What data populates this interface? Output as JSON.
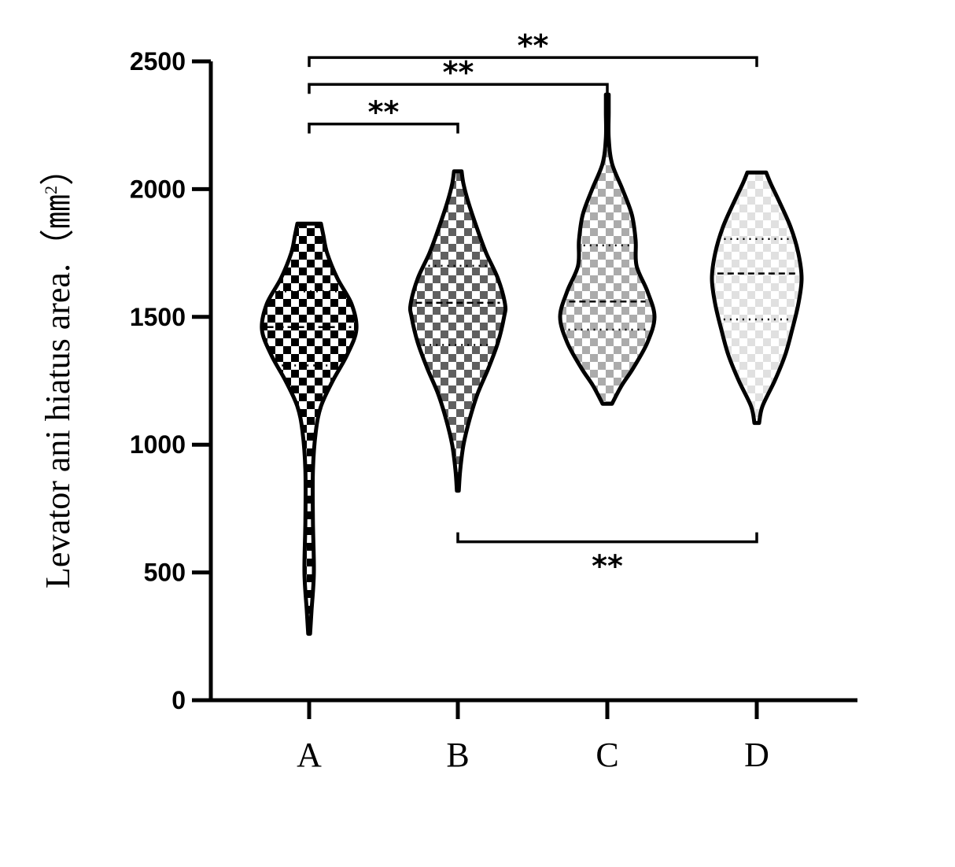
{
  "chart_data": {
    "type": "violin",
    "ylabel": "Levator ani hiatus area.（㎜",
    "ylabel_sup": "2",
    "ylabel_close": "）",
    "ylim": [
      0,
      2500
    ],
    "yticks": [
      0,
      500,
      1000,
      1500,
      2000,
      2500
    ],
    "categories": [
      "A",
      "B",
      "C",
      "D"
    ],
    "grid": false,
    "series": [
      {
        "category": "A",
        "fill": "#000000",
        "fill_opacity": 1.0,
        "min": 260,
        "max": 1865,
        "q1": 1310,
        "median": 1460,
        "q3": 1600,
        "density": [
          [
            260,
            0.02
          ],
          [
            350,
            0.05
          ],
          [
            500,
            0.1
          ],
          [
            700,
            0.08
          ],
          [
            900,
            0.08
          ],
          [
            1050,
            0.14
          ],
          [
            1150,
            0.25
          ],
          [
            1250,
            0.5
          ],
          [
            1350,
            0.8
          ],
          [
            1450,
            1.0
          ],
          [
            1550,
            0.9
          ],
          [
            1650,
            0.6
          ],
          [
            1750,
            0.38
          ],
          [
            1820,
            0.3
          ],
          [
            1865,
            0.25
          ]
        ]
      },
      {
        "category": "B",
        "fill": "#444444",
        "fill_opacity": 0.85,
        "min": 820,
        "max": 2070,
        "q1": 1390,
        "median": 1555,
        "q3": 1700,
        "density": [
          [
            820,
            0.02
          ],
          [
            900,
            0.05
          ],
          [
            1000,
            0.12
          ],
          [
            1100,
            0.25
          ],
          [
            1200,
            0.42
          ],
          [
            1300,
            0.65
          ],
          [
            1400,
            0.85
          ],
          [
            1500,
            0.98
          ],
          [
            1550,
            1.0
          ],
          [
            1650,
            0.85
          ],
          [
            1750,
            0.6
          ],
          [
            1850,
            0.4
          ],
          [
            1950,
            0.22
          ],
          [
            2020,
            0.12
          ],
          [
            2070,
            0.08
          ]
        ]
      },
      {
        "category": "C",
        "fill": "#666666",
        "fill_opacity": 0.55,
        "min": 1160,
        "max": 2370,
        "q1": 1450,
        "median": 1560,
        "q3": 1780,
        "density": [
          [
            1160,
            0.1
          ],
          [
            1230,
            0.3
          ],
          [
            1300,
            0.55
          ],
          [
            1400,
            0.85
          ],
          [
            1500,
            1.0
          ],
          [
            1600,
            0.85
          ],
          [
            1700,
            0.62
          ],
          [
            1800,
            0.6
          ],
          [
            1900,
            0.52
          ],
          [
            2000,
            0.32
          ],
          [
            2100,
            0.1
          ],
          [
            2200,
            0.03
          ],
          [
            2300,
            0.03
          ],
          [
            2370,
            0.03
          ]
        ]
      },
      {
        "category": "D",
        "fill": "#999999",
        "fill_opacity": 0.3,
        "min": 1085,
        "max": 2065,
        "q1": 1490,
        "median": 1670,
        "q3": 1805,
        "density": [
          [
            1085,
            0.05
          ],
          [
            1150,
            0.12
          ],
          [
            1250,
            0.38
          ],
          [
            1350,
            0.6
          ],
          [
            1450,
            0.75
          ],
          [
            1550,
            0.88
          ],
          [
            1650,
            0.95
          ],
          [
            1750,
            0.88
          ],
          [
            1850,
            0.72
          ],
          [
            1950,
            0.48
          ],
          [
            2020,
            0.3
          ],
          [
            2065,
            0.2
          ]
        ]
      }
    ],
    "comparisons": [
      {
        "from": "A",
        "to": "B",
        "y": 2255,
        "label": "**",
        "side": "above"
      },
      {
        "from": "A",
        "to": "C",
        "y": 2410,
        "label": "**",
        "side": "above"
      },
      {
        "from": "A",
        "to": "D",
        "y": 2515,
        "label": "**",
        "side": "above"
      },
      {
        "from": "B",
        "to": "D",
        "y": 620,
        "label": "**",
        "side": "below"
      }
    ]
  }
}
